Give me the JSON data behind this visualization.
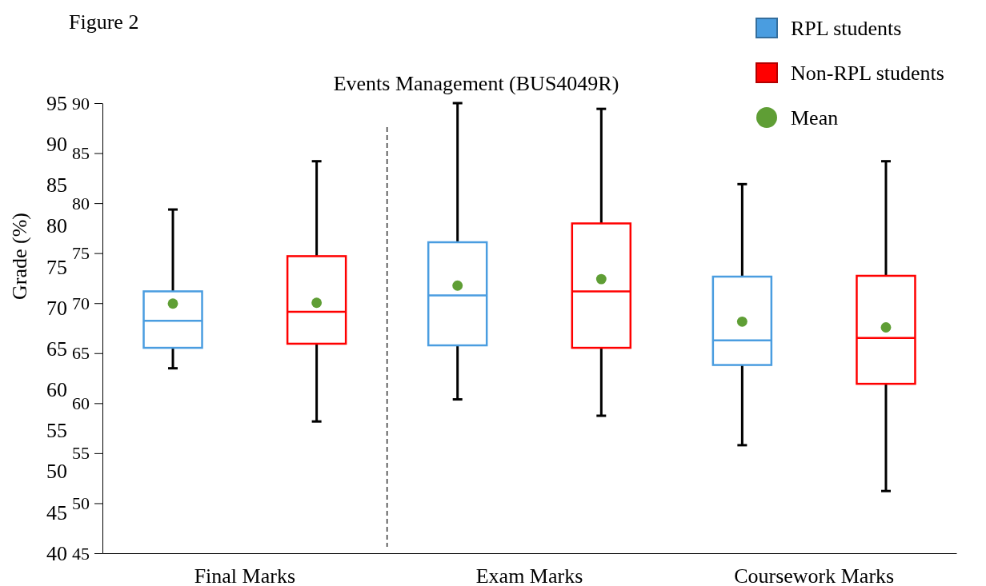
{
  "chart_data": {
    "type": "box",
    "title": "Events Management (BUS4049R)",
    "ylabel": "Grade (%)",
    "annotations": [
      "Figure 2"
    ],
    "categories": [
      "Final Marks",
      "Exam Marks",
      "Coursework Marks"
    ],
    "ylim": [
      40,
      95
    ],
    "yticks": [
      40,
      45,
      50,
      55,
      60,
      65,
      70,
      75,
      80,
      85,
      90,
      95
    ],
    "y2lim": [
      45,
      90
    ],
    "y2ticks": [
      45,
      50,
      55,
      60,
      65,
      70,
      75,
      80,
      85,
      90
    ],
    "legend": "top right",
    "grid": false,
    "series": [
      {
        "name": "RPL students",
        "color": "#4a9de0",
        "boxes": [
          {
            "low": 62.6,
            "q1": 65.1,
            "median": 68.4,
            "q3": 72.0,
            "high": 82.0
          },
          {
            "low": 58.8,
            "q1": 65.4,
            "median": 71.5,
            "q3": 78.0,
            "high": 95.0
          },
          {
            "low": 53.2,
            "q1": 63.0,
            "median": 66.0,
            "q3": 73.8,
            "high": 85.1
          }
        ]
      },
      {
        "name": "Non-RPL students",
        "color": "#ff0000",
        "boxes": [
          {
            "low": 56.1,
            "q1": 65.6,
            "median": 69.5,
            "q3": 76.3,
            "high": 87.9
          },
          {
            "low": 56.8,
            "q1": 65.1,
            "median": 72.0,
            "q3": 80.3,
            "high": 94.3
          },
          {
            "low": 47.6,
            "q1": 60.7,
            "median": 66.3,
            "q3": 73.9,
            "high": 87.9
          }
        ]
      },
      {
        "name": "Mean",
        "type": "scatter",
        "color": "#5f9e35",
        "marker": "circle",
        "x": [
          "Final Marks",
          "Final Marks",
          "Exam Marks",
          "Exam Marks",
          "Coursework Marks",
          "Coursework Marks"
        ],
        "values": [
          70.5,
          70.6,
          72.7,
          73.5,
          68.3,
          67.6
        ]
      }
    ]
  }
}
